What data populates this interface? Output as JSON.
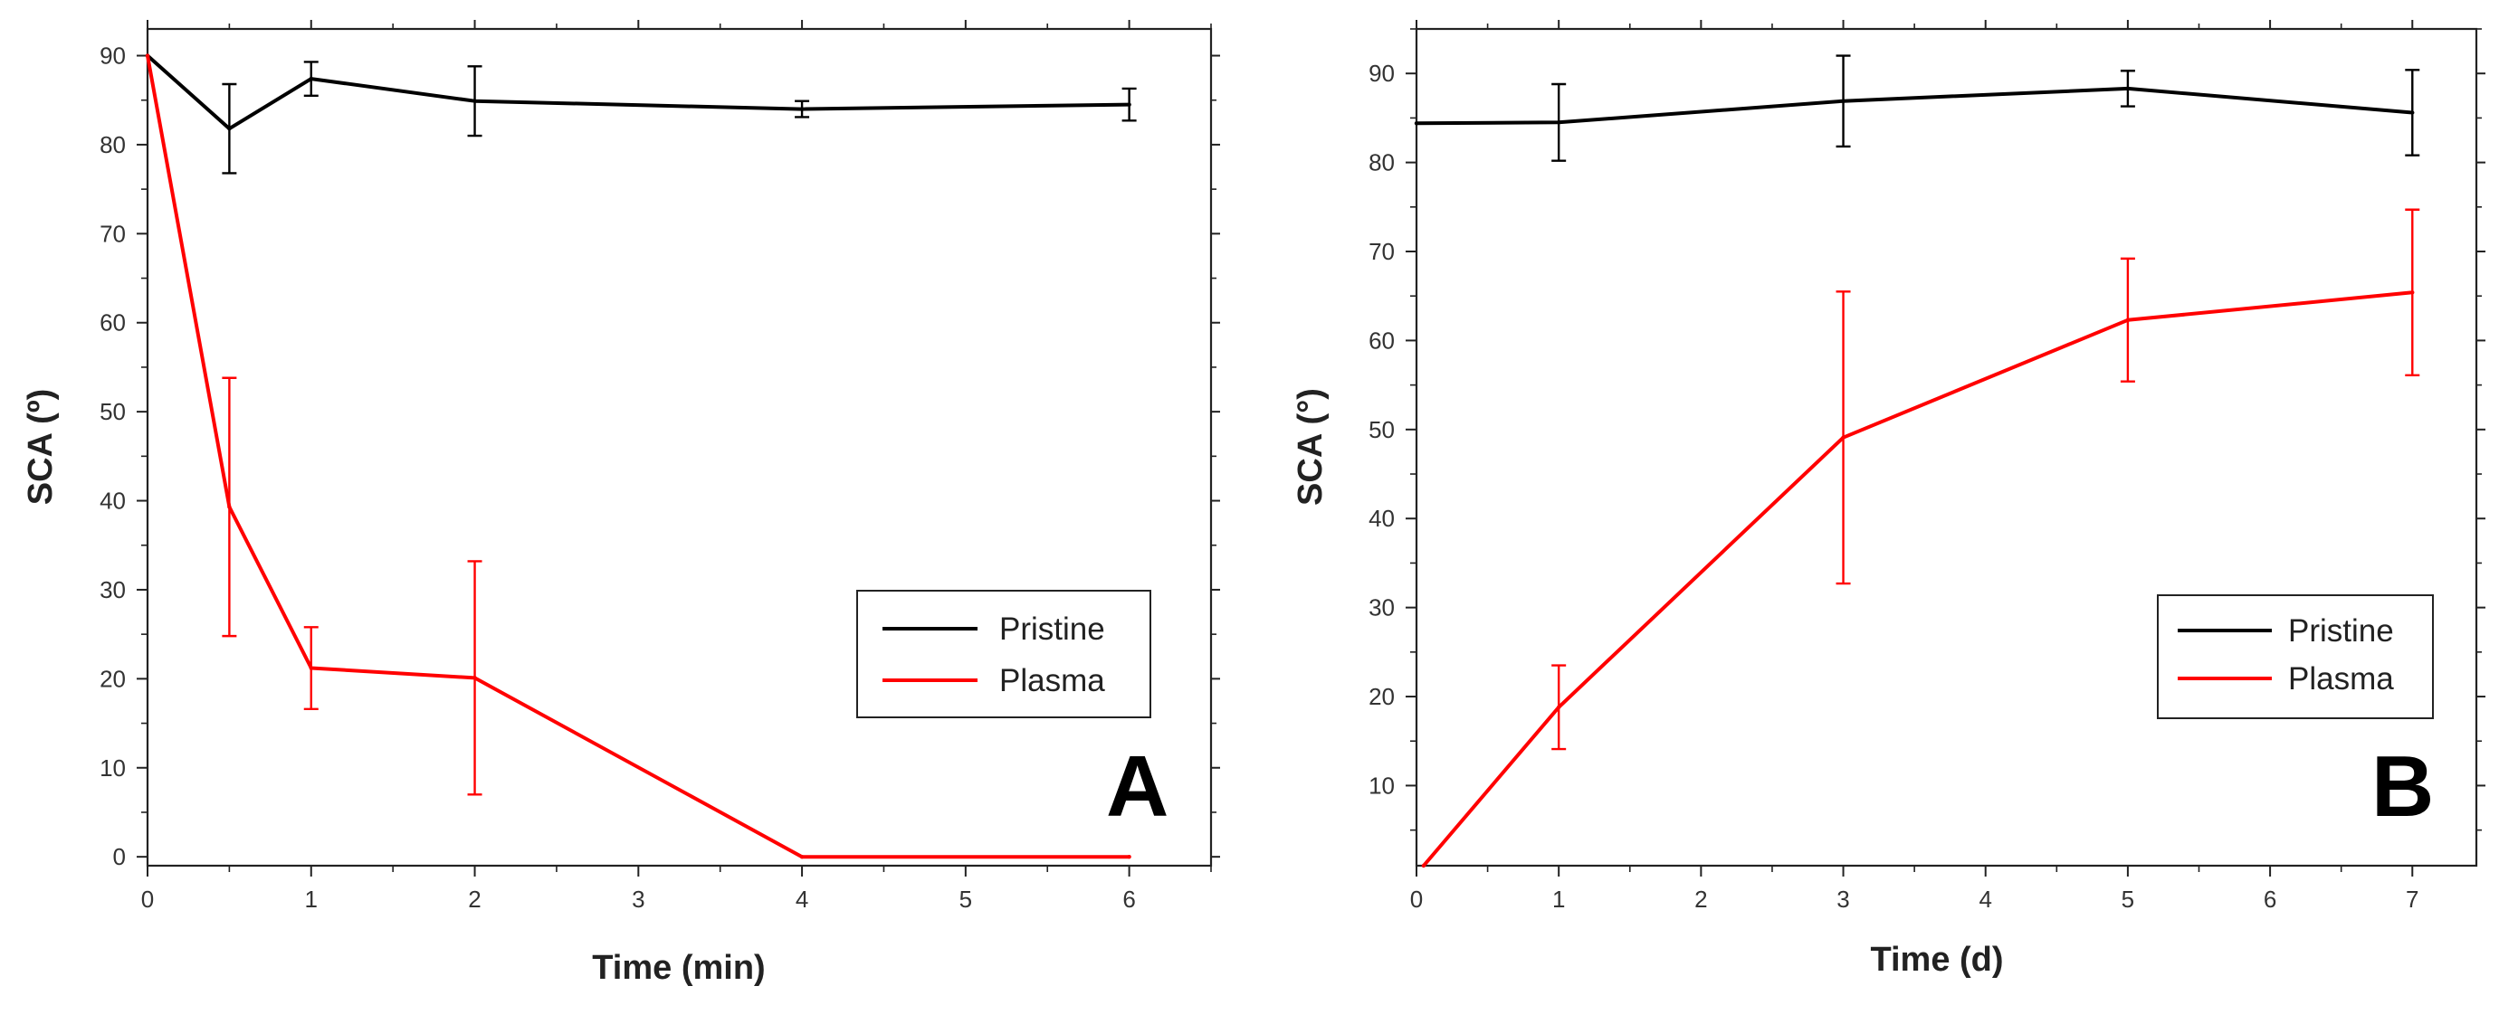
{
  "chart_data": [
    {
      "type": "line",
      "panel": "A",
      "xlabel": "Time (min)",
      "ylabel": "SCA (º)",
      "xlim": [
        0,
        6.5
      ],
      "ylim": [
        -1,
        93
      ],
      "xticks": [
        0,
        1,
        2,
        3,
        4,
        5,
        6
      ],
      "yticks": [
        0,
        10,
        20,
        30,
        40,
        50,
        60,
        70,
        80,
        90
      ],
      "grid": false,
      "legend_position": "bottom-right",
      "series": [
        {
          "name": "Pristine",
          "color": "#000000",
          "x": [
            0,
            0.5,
            1,
            2,
            4,
            6
          ],
          "y": [
            90,
            81.8,
            87.4,
            84.9,
            84.0,
            84.5
          ],
          "error": [
            0,
            5,
            1.9,
            3.9,
            0.9,
            1.8
          ]
        },
        {
          "name": "Plasma",
          "color": "#ff0000",
          "x": [
            0,
            0.5,
            1,
            2,
            4,
            6
          ],
          "y": [
            90,
            39.3,
            21.2,
            20.1,
            0,
            0
          ],
          "error": [
            0,
            14.5,
            4.6,
            13.1,
            0,
            0
          ]
        }
      ]
    },
    {
      "type": "line",
      "panel": "B",
      "xlabel": "Time (d)",
      "ylabel": "SCA (°)",
      "xlim": [
        0,
        7.45
      ],
      "ylim": [
        1,
        95
      ],
      "xticks": [
        0,
        1,
        2,
        3,
        4,
        5,
        6,
        7
      ],
      "yticks": [
        10,
        20,
        30,
        40,
        50,
        60,
        70,
        80,
        90
      ],
      "grid": false,
      "legend_position": "bottom-right",
      "series": [
        {
          "name": "Pristine",
          "color": "#000000",
          "x": [
            0,
            1,
            3,
            5,
            7
          ],
          "y": [
            84.4,
            84.5,
            86.9,
            88.3,
            85.6
          ],
          "error": [
            0,
            4.3,
            5.1,
            2.0,
            4.8
          ]
        },
        {
          "name": "Plasma",
          "color": "#ff0000",
          "x": [
            0.05,
            1,
            3,
            5,
            7
          ],
          "y": [
            1,
            18.8,
            49.1,
            62.3,
            65.4
          ],
          "error": [
            0,
            4.7,
            16.4,
            6.9,
            9.3
          ]
        }
      ]
    }
  ]
}
